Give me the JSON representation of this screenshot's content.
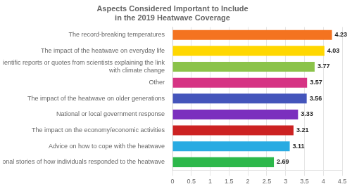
{
  "chart_data": {
    "type": "bar",
    "orientation": "horizontal",
    "title": "Aspects Considered Important to Include\nin the 2019 Heatwave Coverage",
    "categories": [
      "Personal stories of how individuals responded to the heatwave",
      "Advice on how to cope with the heatwave",
      "The impact on the economy/economic activities",
      "National or local government response",
      "The impact of the heatwave on older generations",
      "Other",
      "Scientific reports or quotes from scientists explaining the link\nwith climate change",
      "The impact of the heatwave on everyday life",
      "The record-breaking temperatures"
    ],
    "values": [
      2.69,
      3.11,
      3.21,
      3.33,
      3.56,
      3.57,
      3.77,
      4.03,
      4.23
    ],
    "colors": [
      "#2db84b",
      "#29abe2",
      "#cc2222",
      "#7b2fbe",
      "#4455bb",
      "#d63384",
      "#8bc34a",
      "#ffd700",
      "#f47320"
    ],
    "xlim": [
      0,
      4.5
    ],
    "xticks": [
      0,
      0.5,
      1,
      1.5,
      2,
      2.5,
      3,
      3.5,
      4,
      4.5
    ],
    "grid": true,
    "data_labels": true
  }
}
